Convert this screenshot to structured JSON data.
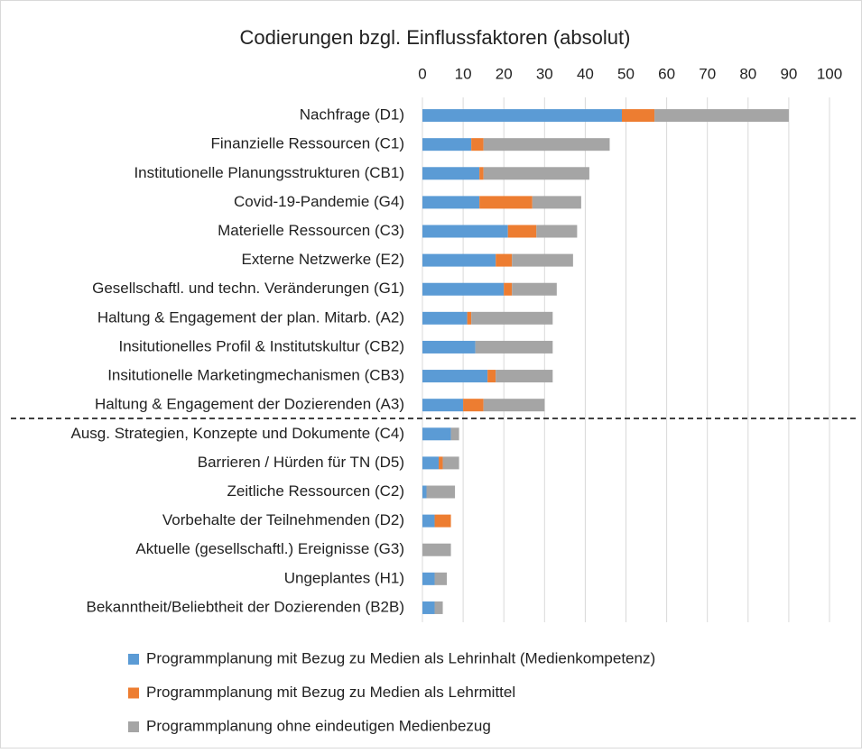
{
  "chart_data": {
    "type": "stacked_bar_horizontal",
    "title": "Codierungen bzgl. Einflussfaktoren (absolut)",
    "categories": [
      "Nachfrage (D1)",
      "Finanzielle Ressourcen (C1)",
      "Institutionelle Planungsstrukturen (CB1)",
      "Covid-19-Pandemie (G4)",
      "Materielle Ressourcen (C3)",
      "Externe Netzwerke (E2)",
      "Gesellschaftl. und techn. Veränderungen (G1)",
      "Haltung & Engagement der plan. Mitarb. (A2)",
      "Insitutionelles Profil & Institutskultur (CB2)",
      "Insitutionelle Marketingmechanismen (CB3)",
      "Haltung & Engagement der Dozierenden (A3)",
      "Ausg. Strategien, Konzepte und Dokumente (C4)",
      "Barrieren / Hürden für TN (D5)",
      "Zeitliche Ressourcen (C2)",
      "Vorbehalte der Teilnehmenden (D2)",
      "Aktuelle (gesellschaftl.) Ereignisse (G3)",
      "Ungeplantes (H1)",
      "Bekanntheit/Beliebtheit der Dozierenden (B2B)"
    ],
    "series": [
      {
        "name": "Programmplanung mit Bezug zu Medien als Lehrinhalt (Medienkompetenz)",
        "color": "#5b9bd5",
        "values": [
          49,
          12,
          14,
          14,
          21,
          18,
          20,
          11,
          13,
          16,
          10,
          7,
          4,
          1,
          3,
          0,
          3,
          3
        ]
      },
      {
        "name": "Programmplanung mit Bezug zu Medien als Lehrmittel",
        "color": "#ed7d31",
        "values": [
          8,
          3,
          1,
          13,
          7,
          4,
          2,
          1,
          0,
          2,
          5,
          0,
          1,
          0,
          4,
          0,
          0,
          0
        ]
      },
      {
        "name": "Programmplanung ohne eindeutigen Medienbezug",
        "color": "#a5a5a5",
        "values": [
          33,
          31,
          26,
          12,
          10,
          15,
          11,
          20,
          19,
          14,
          15,
          2,
          4,
          7,
          0,
          7,
          3,
          2
        ]
      }
    ],
    "xlim": [
      0,
      100
    ],
    "xticks": [
      0,
      10,
      20,
      30,
      40,
      50,
      60,
      70,
      80,
      90,
      100
    ],
    "grid": true
  }
}
